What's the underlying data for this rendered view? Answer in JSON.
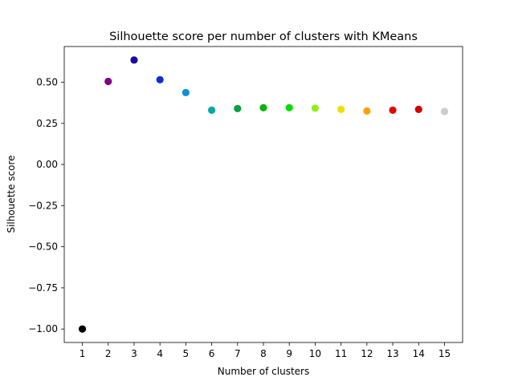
{
  "chart_data": {
    "type": "scatter",
    "title": "Silhouette score per number of clusters with KMeans",
    "xlabel": "Number of clusters",
    "ylabel": "Silhouette score",
    "x": [
      1,
      2,
      3,
      4,
      5,
      6,
      7,
      8,
      9,
      10,
      11,
      12,
      13,
      14,
      15
    ],
    "y": [
      -1.0,
      0.505,
      0.635,
      0.515,
      0.437,
      0.33,
      0.34,
      0.345,
      0.345,
      0.342,
      0.335,
      0.325,
      0.33,
      0.335,
      0.322
    ],
    "point_colors": [
      "#000000",
      "#800080",
      "#1a0aa0",
      "#0a2fd8",
      "#0a8fd8",
      "#00a8a8",
      "#00a040",
      "#00b800",
      "#00e000",
      "#90f010",
      "#f0e000",
      "#ffa000",
      "#e80000",
      "#d00000",
      "#cccccc"
    ],
    "xticks": [
      "1",
      "2",
      "3",
      "4",
      "5",
      "6",
      "7",
      "8",
      "9",
      "10",
      "11",
      "12",
      "13",
      "14",
      "15"
    ],
    "yticks": [
      "−1.00",
      "−0.75",
      "−0.50",
      "−0.25",
      "0.00",
      "0.25",
      "0.50"
    ],
    "ytick_values": [
      -1.0,
      -0.75,
      -0.5,
      -0.25,
      0.0,
      0.25,
      0.5
    ],
    "xlim": [
      0.3,
      15.7
    ],
    "ylim": [
      -1.082,
      0.717
    ],
    "grid": false,
    "legend": false
  }
}
